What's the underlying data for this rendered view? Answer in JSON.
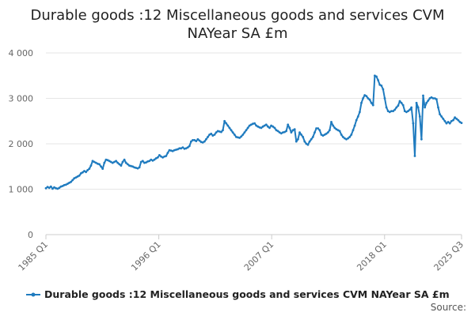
{
  "chart_data": {
    "type": "line",
    "title": "Durable goods :12 Miscellaneous goods and services CVM NAYear SA £m",
    "title_lines": [
      "Durable goods :12 Miscellaneous goods and services CVM",
      "NAYear SA £m"
    ],
    "xlabel": "",
    "ylabel": "",
    "x_tick_labels": [
      "1985 Q1",
      "1996 Q1",
      "2007 Q1",
      "2018 Q1",
      "2025 Q3"
    ],
    "y_tick_labels": [
      "0",
      "1 000",
      "2 000",
      "3 000",
      "4 000"
    ],
    "y_ticks": [
      0,
      1000,
      2000,
      3000,
      4000
    ],
    "ylim": [
      0,
      4000
    ],
    "x_range": [
      "1985 Q1",
      "2025 Q3"
    ],
    "grid": "horizontal",
    "legend_position": "bottom",
    "source_label": "Source:",
    "series": [
      {
        "name": "Durable goods :12 Miscellaneous goods and services CVM NAYear SA £m",
        "color": "#1f7bbf",
        "values": [
          1020,
          1050,
          1030,
          1060,
          1010,
          1040,
          1020,
          1010,
          1030,
          1060,
          1070,
          1090,
          1100,
          1120,
          1140,
          1160,
          1200,
          1240,
          1260,
          1280,
          1300,
          1350,
          1370,
          1400,
          1380,
          1420,
          1450,
          1520,
          1620,
          1600,
          1580,
          1560,
          1550,
          1500,
          1450,
          1580,
          1650,
          1640,
          1620,
          1600,
          1580,
          1600,
          1620,
          1580,
          1550,
          1520,
          1600,
          1650,
          1580,
          1550,
          1520,
          1510,
          1500,
          1480,
          1470,
          1460,
          1480,
          1600,
          1620,
          1580,
          1590,
          1610,
          1620,
          1650,
          1630,
          1650,
          1680,
          1700,
          1750,
          1720,
          1700,
          1720,
          1730,
          1800,
          1860,
          1850,
          1840,
          1860,
          1870,
          1880,
          1900,
          1900,
          1920,
          1890,
          1900,
          1920,
          1950,
          2050,
          2080,
          2080,
          2060,
          2100,
          2070,
          2040,
          2030,
          2050,
          2100,
          2150,
          2200,
          2220,
          2180,
          2200,
          2250,
          2280,
          2270,
          2260,
          2300,
          2500,
          2450,
          2400,
          2350,
          2300,
          2250,
          2200,
          2150,
          2140,
          2130,
          2160,
          2200,
          2250,
          2300,
          2350,
          2400,
          2420,
          2440,
          2450,
          2400,
          2380,
          2360,
          2350,
          2380,
          2400,
          2420,
          2380,
          2350,
          2400,
          2380,
          2350,
          2300,
          2280,
          2250,
          2230,
          2250,
          2260,
          2280,
          2420,
          2350,
          2250,
          2300,
          2320,
          2050,
          2100,
          2250,
          2200,
          2150,
          2050,
          2000,
          1980,
          2050,
          2100,
          2150,
          2250,
          2340,
          2340,
          2300,
          2200,
          2180,
          2200,
          2220,
          2250,
          2300,
          2480,
          2400,
          2350,
          2320,
          2300,
          2280,
          2200,
          2150,
          2120,
          2100,
          2120,
          2150,
          2200,
          2300,
          2400,
          2520,
          2600,
          2700,
          2900,
          3000,
          3070,
          3050,
          3000,
          2970,
          2900,
          2850,
          3500,
          3480,
          3400,
          3300,
          3280,
          3200,
          3000,
          2800,
          2720,
          2700,
          2720,
          2720,
          2750,
          2800,
          2840,
          2940,
          2900,
          2850,
          2720,
          2700,
          2720,
          2750,
          2800,
          2450,
          1730,
          2900,
          2800,
          2600,
          2100,
          3060,
          2800,
          2900,
          2950,
          3000,
          3020,
          3000,
          3000,
          2980,
          2800,
          2650,
          2600,
          2550,
          2500,
          2450,
          2480,
          2450,
          2500,
          2520,
          2580,
          2550,
          2520,
          2480,
          2460
        ]
      }
    ]
  }
}
